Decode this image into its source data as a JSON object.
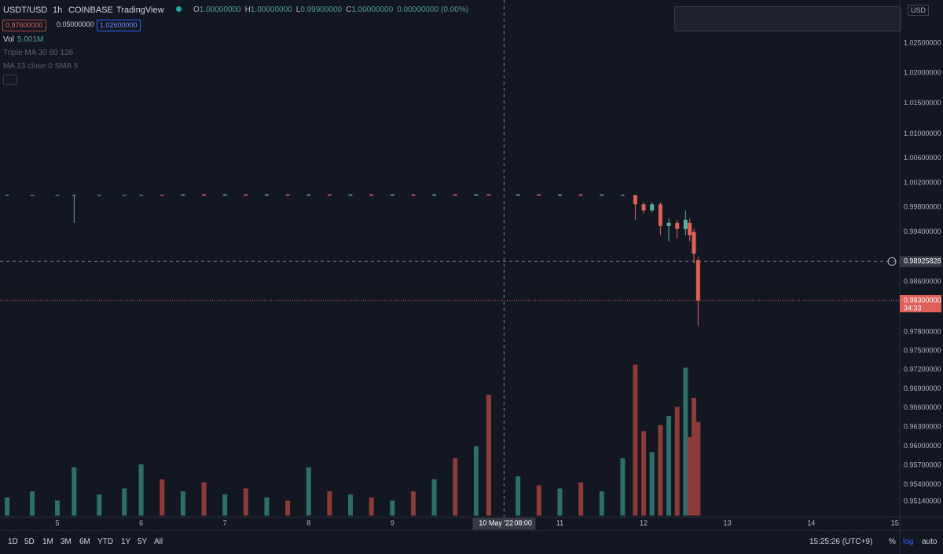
{
  "chart_data": {
    "type": "candlestick",
    "header": {
      "symbol": "USDT/USD",
      "interval": "1h",
      "exchange": "COINBASE",
      "source": "TradingView",
      "ohlc": [
        {
          "key": "O",
          "value": {
            "value": 1,
            "label": "1.00000000"
          }
        },
        {
          "key": "H",
          "value": {
            "value": 1,
            "label": "1.00000000"
          }
        },
        {
          "key": "L",
          "value": {
            "value": 0.999,
            "label": "0.99900000"
          }
        },
        {
          "key": "C",
          "value": {
            "value": 1,
            "label": "1.00000000"
          }
        }
      ],
      "change": {
        "value": 0,
        "label": "0.00000000"
      },
      "change_pct": {
        "value": 0,
        "label": "(0.00%)"
      }
    },
    "order_boxes": [
      {
        "value": 0.976,
        "label": "0.97600000"
      },
      {
        "value": 0.05,
        "label": "0.05000000"
      },
      {
        "value": 1.026,
        "label": "1.02600000"
      }
    ],
    "indicators": {
      "vol_key": "Vol",
      "vol_value": "5.001M",
      "ma_triple": "Triple MA 30 60 126",
      "ma_sma": "MA 13 close 0 SMA 5"
    },
    "currency": "USD",
    "log": true,
    "xlim": [
      4.315,
      15.03
    ],
    "xticks": [
      5,
      6,
      7,
      8,
      9,
      11,
      12,
      13,
      14,
      15
    ],
    "ylim": [
      0.9501,
      1.0322
    ],
    "yticks": [
      {
        "value": 1.025,
        "label": "1.02500000"
      },
      {
        "value": 1.02,
        "label": "1.02000000"
      },
      {
        "value": 1.015,
        "label": "1.01500000"
      },
      {
        "value": 1.01,
        "label": "1.01000000"
      },
      {
        "value": 1.006,
        "label": "1.00600000"
      },
      {
        "value": 1.002,
        "label": "1.00200000"
      },
      {
        "value": 0.998,
        "label": "0.99800000"
      },
      {
        "value": 0.994,
        "label": "0.99400000"
      },
      {
        "value": 0.986,
        "label": "0.98600000"
      },
      {
        "value": 0.978,
        "label": "0.97800000"
      },
      {
        "value": 0.975,
        "label": "0.97500000"
      },
      {
        "value": 0.972,
        "label": "0.97200000"
      },
      {
        "value": 0.969,
        "label": "0.96900000"
      },
      {
        "value": 0.966,
        "label": "0.96600000"
      },
      {
        "value": 0.963,
        "label": "0.96300000"
      },
      {
        "value": 0.96,
        "label": "0.96000000"
      },
      {
        "value": 0.957,
        "label": "0.95700000"
      },
      {
        "value": 0.954,
        "label": "0.95400000"
      },
      {
        "value": 0.9514,
        "label": "0.95140000"
      }
    ],
    "y2lim": [
      0,
      5.2
    ],
    "up_color": "#5aada3",
    "down_color": "#e0605a",
    "vol_up_color": "#2d6f69",
    "vol_down_color": "#8c3b38",
    "candles": [
      {
        "x": 4.4,
        "o": 1,
        "h": 1,
        "l": 1,
        "c": 1,
        "v": 0.6
      },
      {
        "x": 4.7,
        "o": 1,
        "h": 1,
        "l": 1,
        "c": 1,
        "v": 0.8
      },
      {
        "x": 5.0,
        "o": 1,
        "h": 1,
        "l": 1,
        "c": 1,
        "v": 0.5
      },
      {
        "x": 5.2,
        "o": 1,
        "h": 1,
        "l": 0.9955,
        "c": 1,
        "v": 1.6
      },
      {
        "x": 5.5,
        "o": 1,
        "h": 1,
        "l": 1,
        "c": 1,
        "v": 0.7
      },
      {
        "x": 5.8,
        "o": 1,
        "h": 1,
        "l": 1,
        "c": 1,
        "v": 0.9
      },
      {
        "x": 6.0,
        "o": 1,
        "h": 1,
        "l": 1,
        "c": 1,
        "v": 1.7
      },
      {
        "x": 6.25,
        "o": 1,
        "h": 1.0001,
        "l": 0.9999,
        "c": 0.9999,
        "v": 1.2
      },
      {
        "x": 6.5,
        "o": 0.9999,
        "h": 1.0001,
        "l": 0.9999,
        "c": 1.0001,
        "v": 0.8
      },
      {
        "x": 6.75,
        "o": 1.0001,
        "h": 1.0001,
        "l": 0.9999,
        "c": 0.9999,
        "v": 1.1
      },
      {
        "x": 7.0,
        "o": 0.9999,
        "h": 1.0001,
        "l": 0.9999,
        "c": 1.0001,
        "v": 0.7
      },
      {
        "x": 7.25,
        "o": 1.0001,
        "h": 1.0001,
        "l": 0.9999,
        "c": 0.9999,
        "v": 0.9
      },
      {
        "x": 7.5,
        "o": 0.9999,
        "h": 1.0001,
        "l": 0.9999,
        "c": 1.0001,
        "v": 0.6
      },
      {
        "x": 7.75,
        "o": 1.0001,
        "h": 1.0001,
        "l": 0.9999,
        "c": 0.9999,
        "v": 0.5
      },
      {
        "x": 8.0,
        "o": 0.9999,
        "h": 1.0001,
        "l": 0.9999,
        "c": 1.0001,
        "v": 1.6
      },
      {
        "x": 8.25,
        "o": 1.0001,
        "h": 1.0001,
        "l": 0.9999,
        "c": 0.9999,
        "v": 0.8
      },
      {
        "x": 8.5,
        "o": 0.9999,
        "h": 1.0001,
        "l": 0.9999,
        "c": 1.0001,
        "v": 0.7
      },
      {
        "x": 8.75,
        "o": 1.0001,
        "h": 1.0001,
        "l": 0.9999,
        "c": 0.9999,
        "v": 0.6
      },
      {
        "x": 9.0,
        "o": 0.9999,
        "h": 1.0001,
        "l": 0.9999,
        "c": 1.0001,
        "v": 0.5
      },
      {
        "x": 9.25,
        "o": 1.0001,
        "h": 1.0001,
        "l": 0.9999,
        "c": 0.9999,
        "v": 0.8
      },
      {
        "x": 9.5,
        "o": 0.9999,
        "h": 1.0001,
        "l": 0.9999,
        "c": 1.0001,
        "v": 1.2
      },
      {
        "x": 9.75,
        "o": 1.0001,
        "h": 1.0001,
        "l": 0.9999,
        "c": 0.9999,
        "v": 1.9
      },
      {
        "x": 10.0,
        "o": 0.9999,
        "h": 1.0001,
        "l": 0.9999,
        "c": 1.0001,
        "v": 2.3
      },
      {
        "x": 10.15,
        "o": 1.0001,
        "h": 1.0001,
        "l": 0.9999,
        "c": 0.9999,
        "v": 4.0
      },
      {
        "x": 10.5,
        "o": 0.9999,
        "h": 1.0001,
        "l": 0.9999,
        "c": 1.0001,
        "v": 1.3
      },
      {
        "x": 10.75,
        "o": 1.0001,
        "h": 1.0001,
        "l": 0.9999,
        "c": 0.9999,
        "v": 1.0
      },
      {
        "x": 11.0,
        "o": 0.9999,
        "h": 1.0001,
        "l": 0.9999,
        "c": 1.0001,
        "v": 0.9
      },
      {
        "x": 11.25,
        "o": 1.0001,
        "h": 1.0001,
        "l": 0.9999,
        "c": 0.9999,
        "v": 1.1
      },
      {
        "x": 11.5,
        "o": 0.9999,
        "h": 1.0001,
        "l": 0.9999,
        "c": 1.0001,
        "v": 0.8
      },
      {
        "x": 11.75,
        "o": 1,
        "h": 1.0001,
        "l": 0.9999,
        "c": 1,
        "v": 1.9
      },
      {
        "x": 11.9,
        "o": 1,
        "h": 1,
        "l": 0.996,
        "c": 0.9985,
        "v": 5.0
      },
      {
        "x": 12.0,
        "o": 0.9985,
        "h": 0.9988,
        "l": 0.997,
        "c": 0.9975,
        "v": 2.8
      },
      {
        "x": 12.1,
        "o": 0.9975,
        "h": 0.9988,
        "l": 0.9972,
        "c": 0.9985,
        "v": 2.1
      },
      {
        "x": 12.2,
        "o": 0.9985,
        "h": 0.9988,
        "l": 0.9935,
        "c": 0.995,
        "v": 3.0
      },
      {
        "x": 12.3,
        "o": 0.995,
        "h": 0.9962,
        "l": 0.9925,
        "c": 0.9955,
        "v": 3.3
      },
      {
        "x": 12.4,
        "o": 0.9955,
        "h": 0.996,
        "l": 0.993,
        "c": 0.9945,
        "v": 3.6
      },
      {
        "x": 12.5,
        "o": 0.9945,
        "h": 0.9975,
        "l": 0.9935,
        "c": 0.996,
        "v": 4.9
      },
      {
        "x": 12.55,
        "o": 0.9955,
        "h": 0.9962,
        "l": 0.9925,
        "c": 0.9935,
        "v": 2.6
      },
      {
        "x": 12.6,
        "o": 0.994,
        "h": 0.9945,
        "l": 0.989,
        "c": 0.9905,
        "v": 3.9
      },
      {
        "x": 12.65,
        "o": 0.9895,
        "h": 0.99,
        "l": 0.979,
        "c": 0.983,
        "v": 3.1
      }
    ],
    "crosshair": {
      "x": 10.333,
      "price": 0.98925828,
      "date_label": "10 May '22",
      "time_label": "08:00"
    },
    "last_price": {
      "value": 0.983,
      "label": "0.98300000"
    },
    "countdown": "34:33",
    "timeframes": [
      "1D",
      "5D",
      "1M",
      "3M",
      "6M",
      "YTD",
      "1Y",
      "5Y",
      "All"
    ],
    "clock": "15:25:26 (UTC+9)",
    "scale_buttons": [
      "%",
      "log",
      "auto"
    ]
  }
}
